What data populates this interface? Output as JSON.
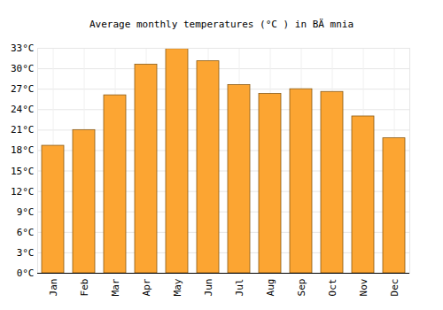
{
  "chart_data": {
    "type": "bar",
    "title": "Average monthly temperatures (°C ) in BÄ mnia",
    "categories": [
      "Jan",
      "Feb",
      "Mar",
      "Apr",
      "May",
      "Jun",
      "Jul",
      "Aug",
      "Sep",
      "Oct",
      "Nov",
      "Dec"
    ],
    "values": [
      18.7,
      21,
      26.1,
      30.6,
      32.9,
      31.1,
      27.6,
      26.3,
      27,
      26.6,
      23,
      19.8
    ],
    "color": "#fca532",
    "ylim": [
      0,
      33
    ],
    "yticks": [
      {
        "value": 0,
        "label": "0°C"
      },
      {
        "value": 3,
        "label": "3°C"
      },
      {
        "value": 6,
        "label": "6°C"
      },
      {
        "value": 9,
        "label": "9°C"
      },
      {
        "value": 12,
        "label": "12°C"
      },
      {
        "value": 15,
        "label": "15°C"
      },
      {
        "value": 18,
        "label": "18°C"
      },
      {
        "value": 21,
        "label": "21°C"
      },
      {
        "value": 24,
        "label": "24°C"
      },
      {
        "value": 27,
        "label": "27°C"
      },
      {
        "value": 30,
        "label": "30°C"
      },
      {
        "value": 33,
        "label": "33°C"
      }
    ],
    "grid": true
  }
}
